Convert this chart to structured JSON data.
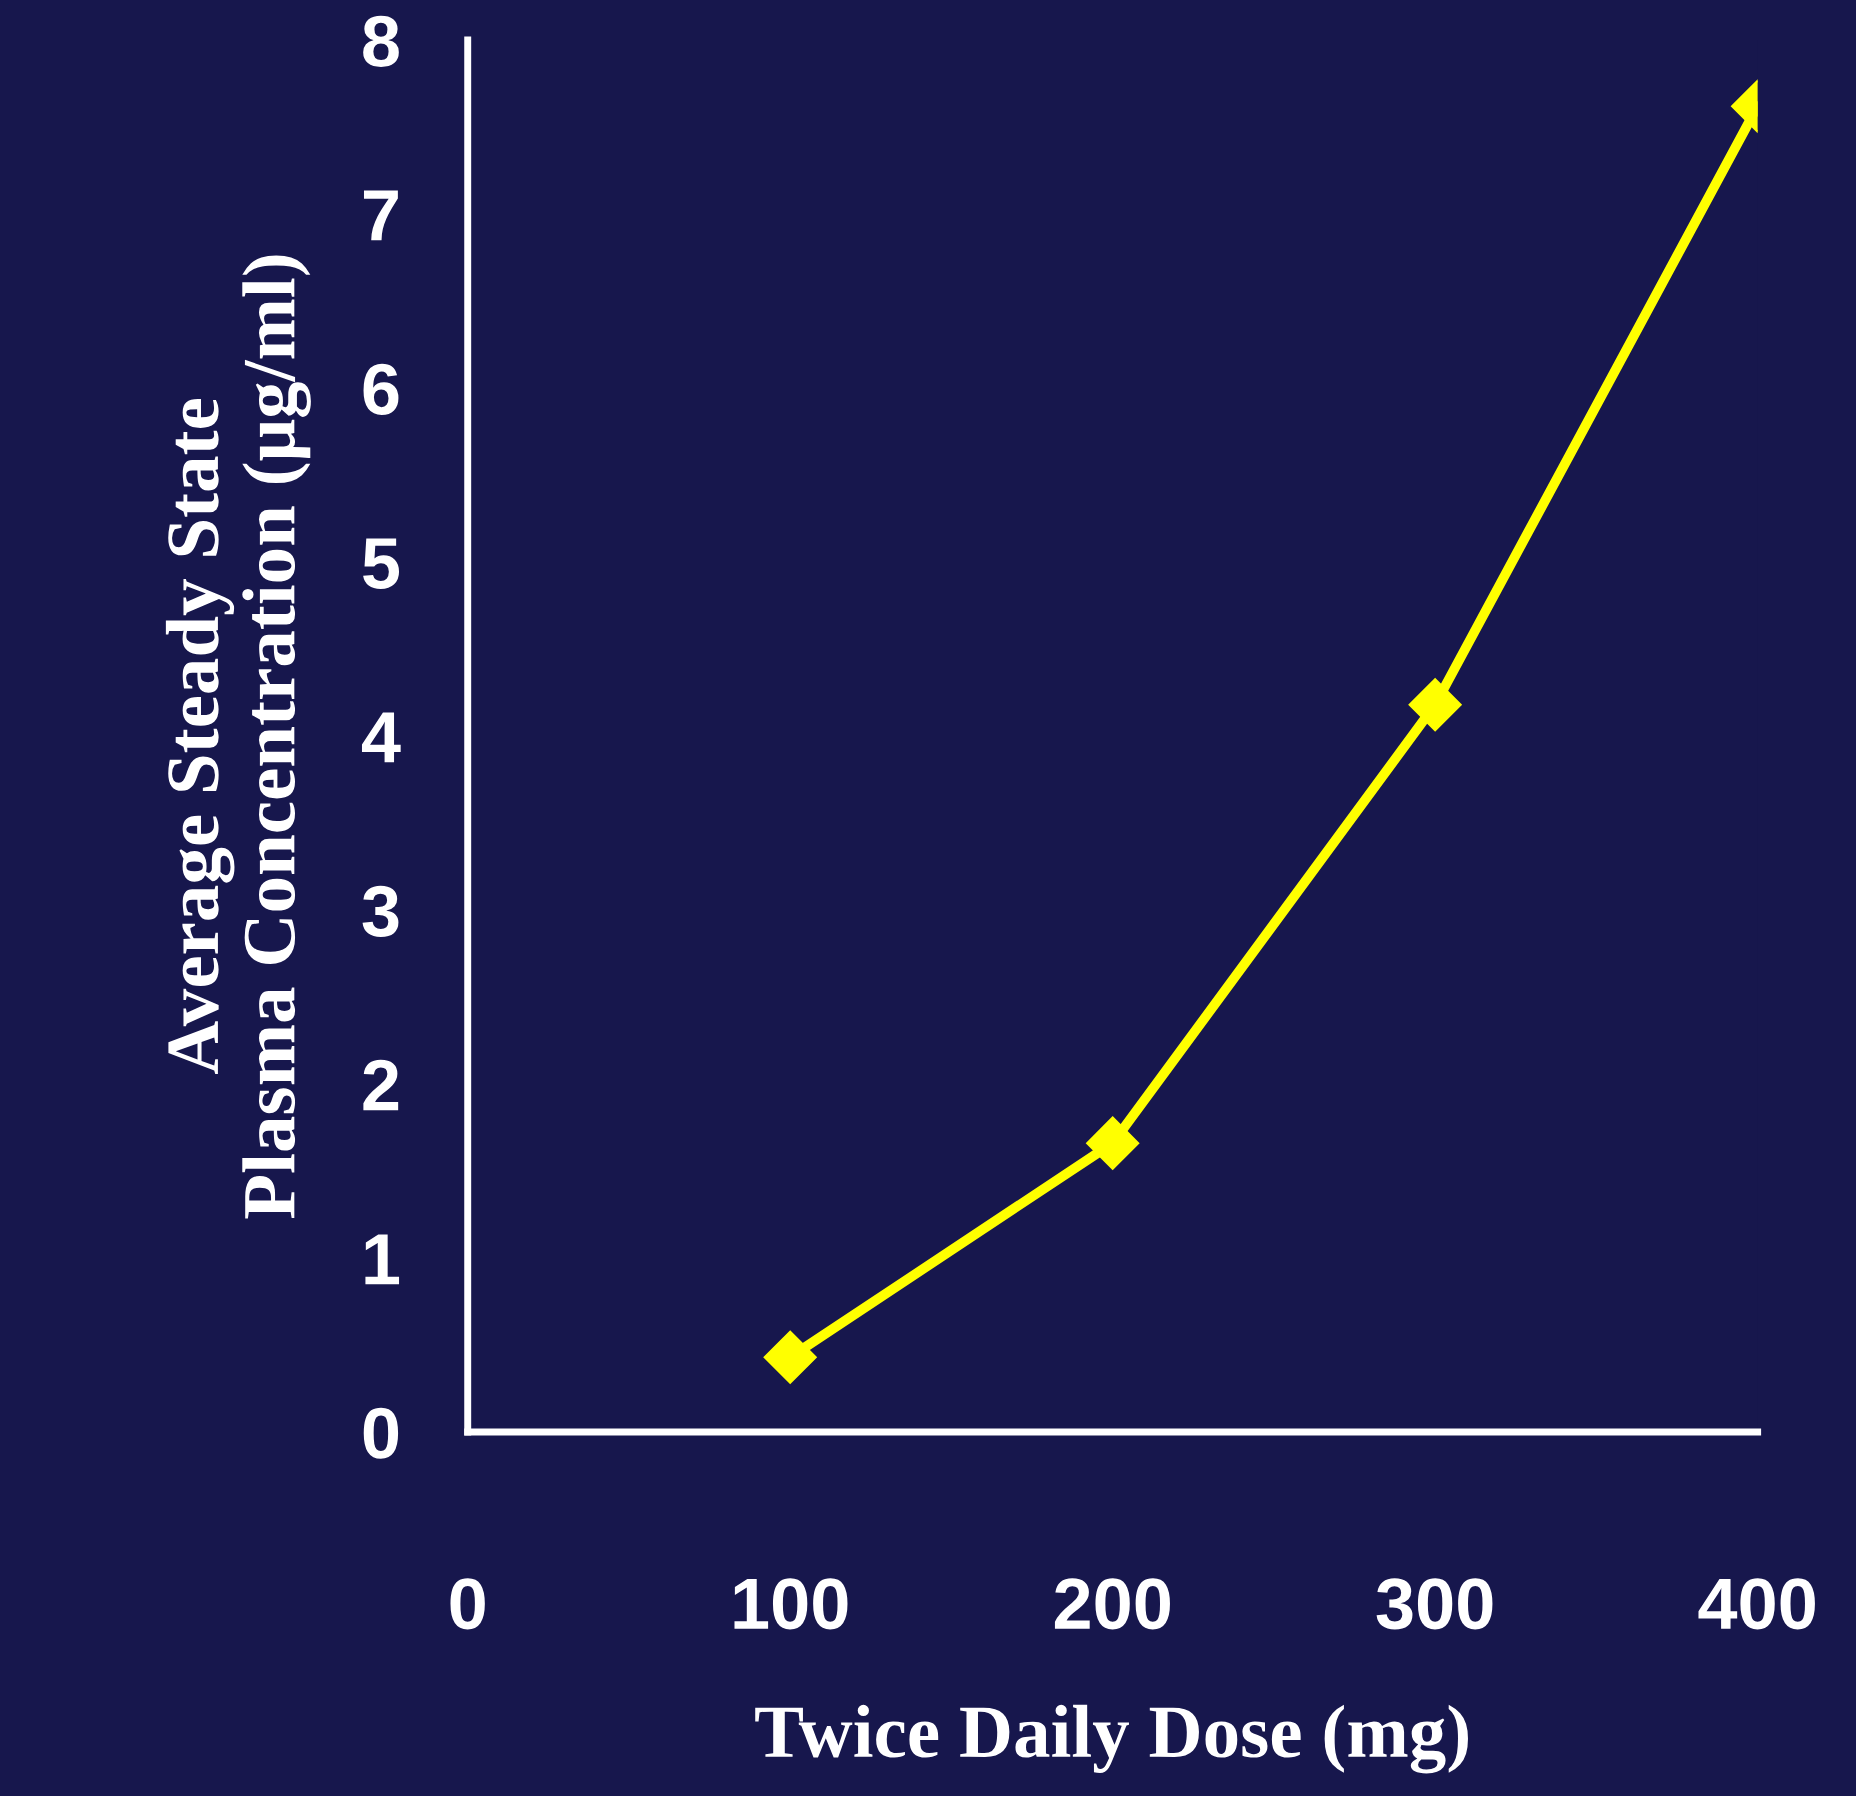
{
  "chart_data": {
    "type": "line",
    "xlabel": "Twice Daily Dose (mg)",
    "ylabel": "Average Steady State\nPlasma Concentration (μg/ml)",
    "x": [
      100,
      200,
      300,
      400
    ],
    "series": [
      {
        "color": "#ffff00",
        "values": [
          0.43,
          1.66,
          4.18,
          7.62
        ]
      }
    ],
    "xlim": [
      0,
      400
    ],
    "xticks": [
      0,
      100,
      200,
      300,
      400
    ],
    "ylim": [
      0,
      8
    ],
    "yticks": [
      0,
      1,
      2,
      3,
      4,
      5,
      6,
      7,
      8
    ],
    "marker": "diamond",
    "line_style": "solid",
    "grid": false,
    "legend": false
  }
}
